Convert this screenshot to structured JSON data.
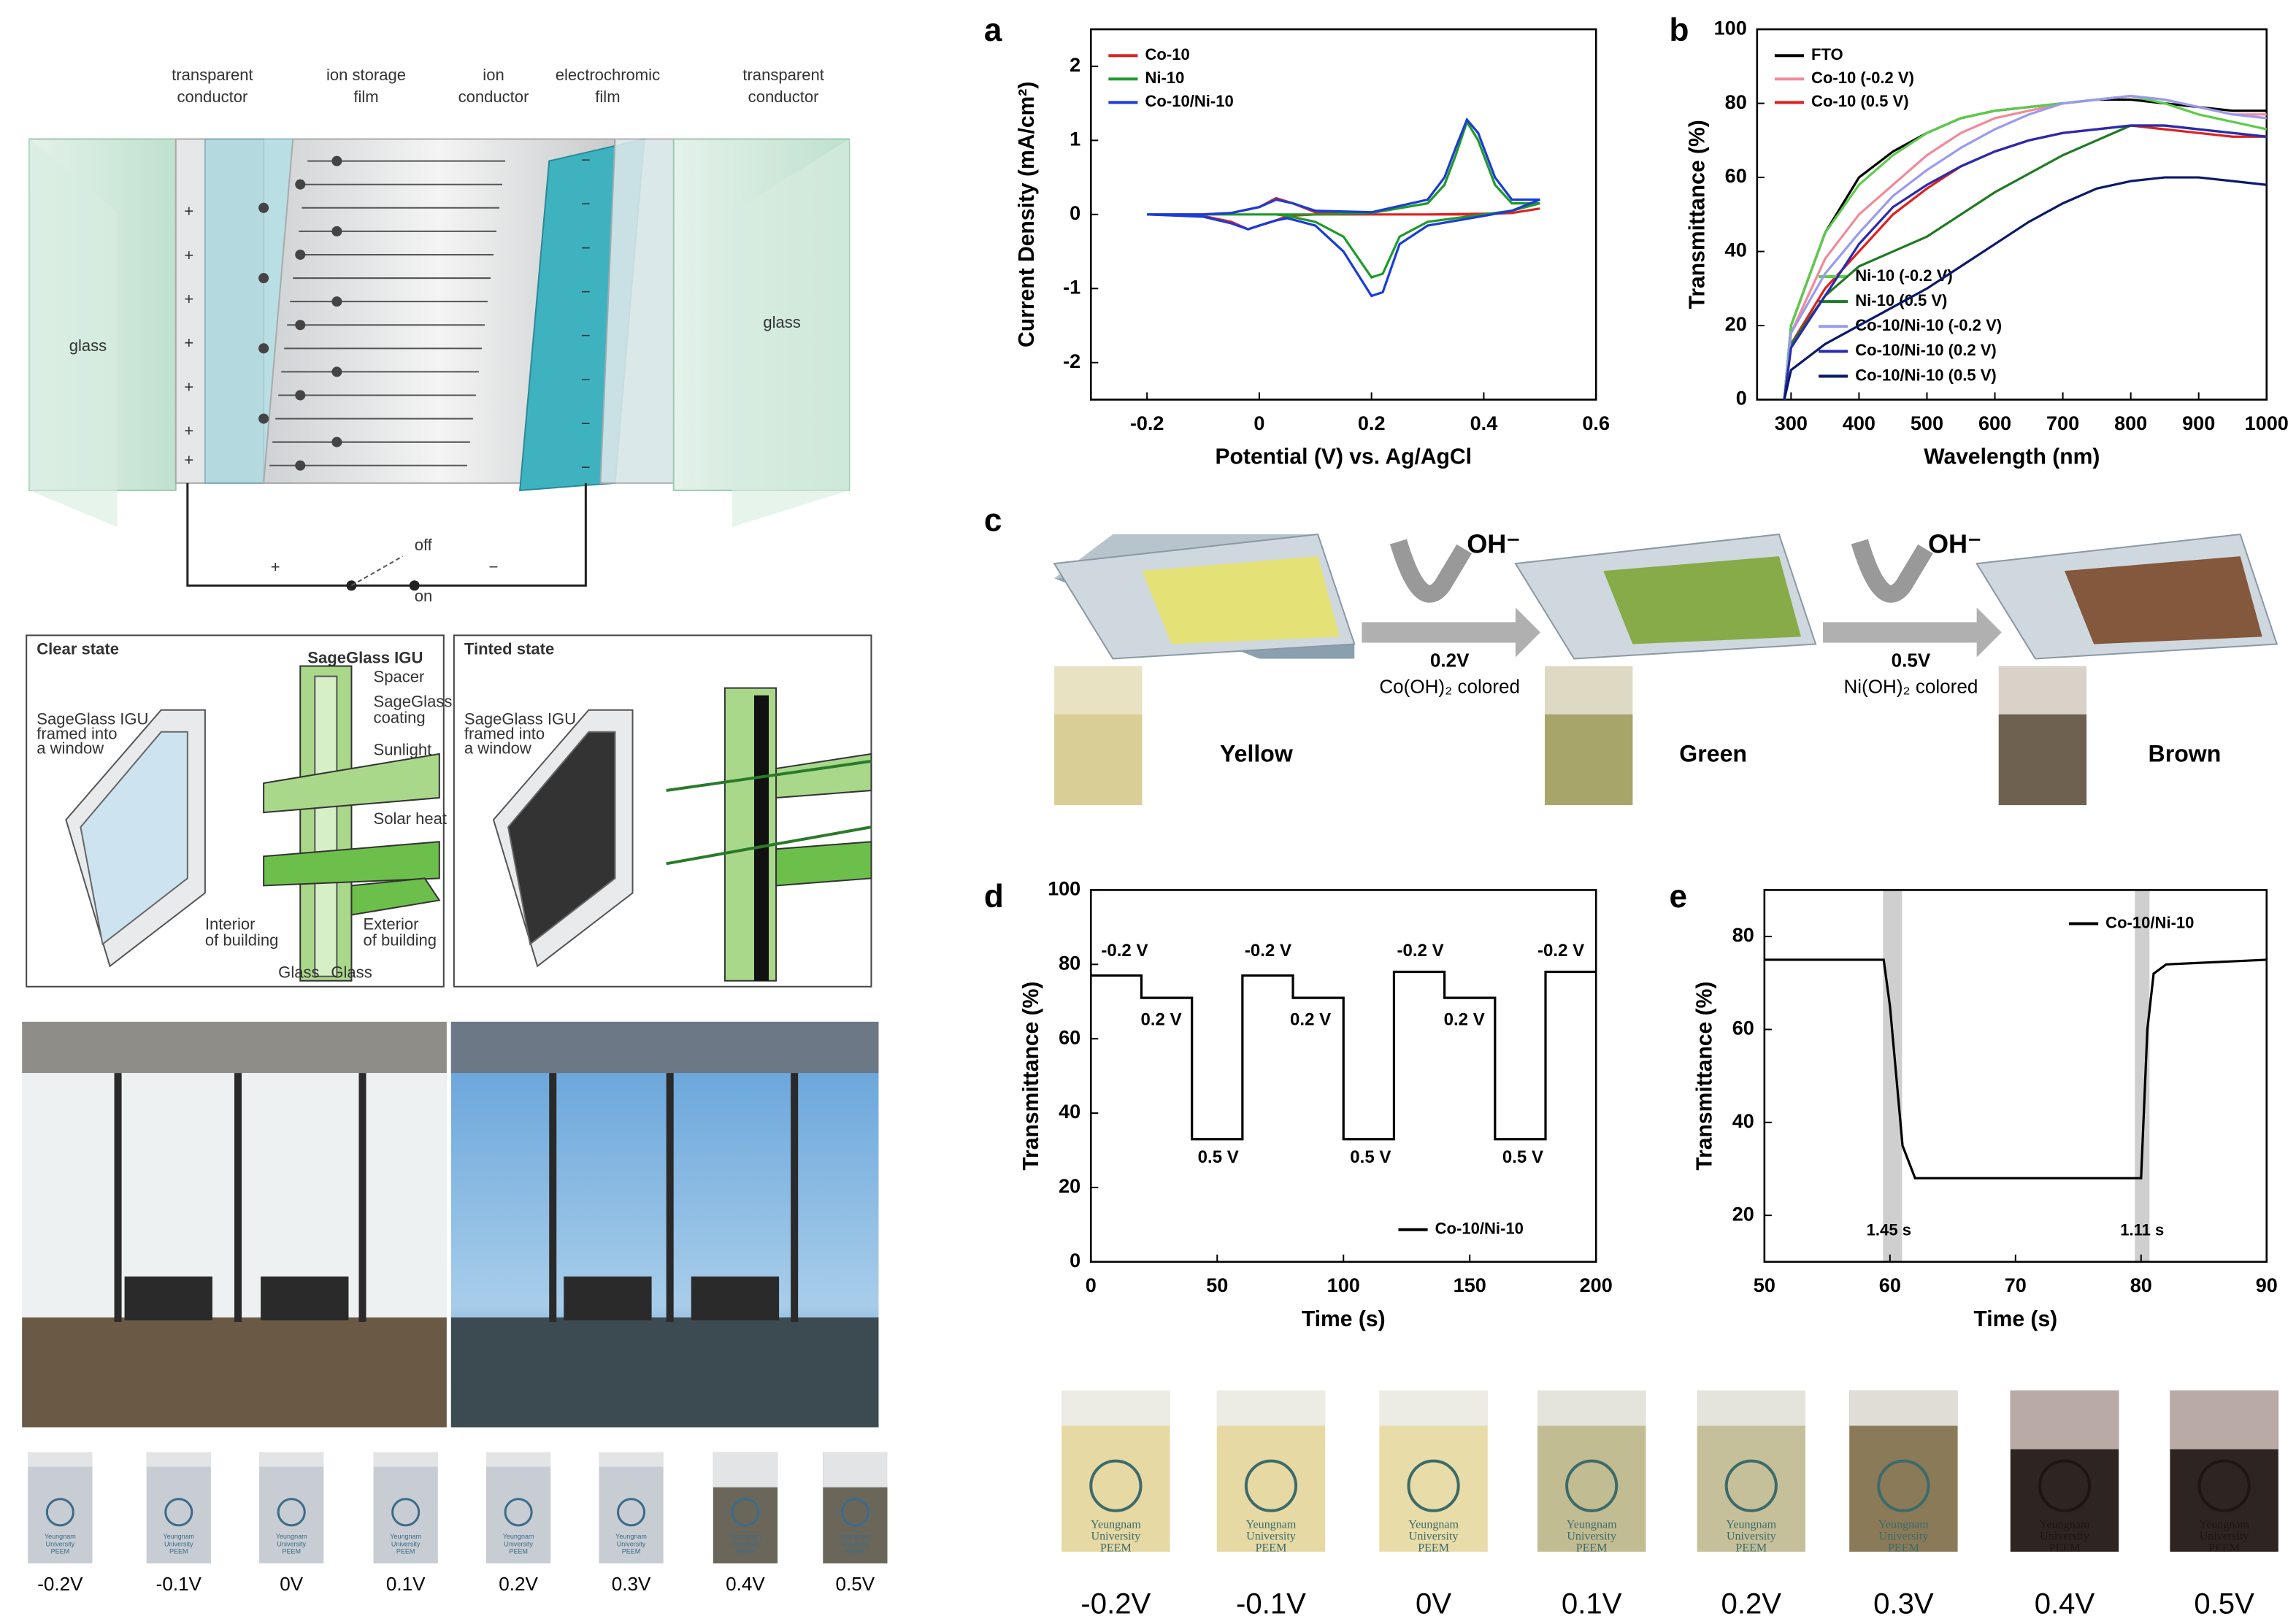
{
  "chart_data": [
    {
      "type": "line",
      "xlabel": "Potential (V) vs. Ag/AgCl",
      "ylabel": "Current Density (mA/cm²)",
      "xlim": [
        -0.3,
        0.6
      ],
      "xticks": [
        -0.2,
        0.0,
        0.2,
        0.4,
        0.6
      ],
      "ylim": [
        -2.5,
        2.5
      ],
      "yticks": [
        -2,
        -1,
        0,
        1,
        2
      ],
      "legend": "upper left",
      "x": [
        -0.2,
        -0.1,
        -0.05,
        0,
        0.03,
        0.06,
        0.1,
        0.2,
        0.3,
        0.33,
        0.35,
        0.37,
        0.39,
        0.42,
        0.45,
        0.5,
        0.45,
        0.4,
        0.3,
        0.25,
        0.22,
        0.2,
        0.15,
        0.1,
        0.05,
        0.03,
        0,
        -0.02,
        -0.05,
        -0.1,
        -0.2
      ],
      "series": [
        {
          "name": "Co-10",
          "color": "#e02020",
          "values": [
            0,
            0,
            0.02,
            0.1,
            0.22,
            0.15,
            0.03,
            0,
            0,
            0,
            0,
            0,
            0,
            0.01,
            0.02,
            0.08,
            0.02,
            0.01,
            0,
            0,
            0,
            0,
            0,
            0,
            -0.02,
            -0.08,
            -0.15,
            -0.2,
            -0.1,
            -0.02,
            0
          ]
        },
        {
          "name": "Ni-10",
          "color": "#1f9a2a",
          "values": [
            0,
            0,
            0,
            0,
            0,
            0,
            0,
            0.02,
            0.15,
            0.4,
            0.8,
            1.25,
            1.0,
            0.4,
            0.15,
            0.15,
            0.05,
            0,
            -0.1,
            -0.3,
            -0.8,
            -0.85,
            -0.3,
            -0.1,
            -0.02,
            0,
            0,
            0,
            0,
            0,
            0
          ]
        },
        {
          "name": "Co-10/Ni-10",
          "color": "#1a3cd8",
          "values": [
            0,
            0,
            0.02,
            0.1,
            0.2,
            0.15,
            0.05,
            0.03,
            0.2,
            0.5,
            0.9,
            1.28,
            1.1,
            0.5,
            0.2,
            0.2,
            0.05,
            -0.02,
            -0.15,
            -0.4,
            -1.05,
            -1.1,
            -0.5,
            -0.15,
            -0.05,
            -0.08,
            -0.15,
            -0.2,
            -0.12,
            -0.03,
            0
          ]
        }
      ]
    },
    {
      "type": "line",
      "xlabel": "Wavelength (nm)",
      "ylabel": "Transmittance (%)",
      "xlim": [
        250,
        1000
      ],
      "xticks": [
        300,
        400,
        500,
        600,
        700,
        800,
        900,
        1000
      ],
      "ylim": [
        0,
        100
      ],
      "yticks": [
        0,
        20,
        40,
        60,
        80,
        100
      ],
      "legend": "upper left",
      "x": [
        290,
        300,
        350,
        400,
        450,
        500,
        550,
        600,
        650,
        700,
        750,
        800,
        850,
        900,
        950,
        1000
      ],
      "series": [
        {
          "name": "FTO",
          "color": "#000000",
          "values": [
            0,
            20,
            45,
            60,
            67,
            72,
            76,
            78,
            79,
            80,
            81,
            81,
            80,
            79,
            78,
            78
          ]
        },
        {
          "name": "Co-10 (-0.2 V)",
          "color": "#f08a9a",
          "values": [
            0,
            18,
            38,
            50,
            58,
            66,
            72,
            76,
            78,
            80,
            81,
            82,
            81,
            79,
            77,
            77
          ]
        },
        {
          "name": "Co-10 (0.5 V)",
          "color": "#e02020",
          "values": [
            0,
            15,
            30,
            40,
            50,
            57,
            63,
            67,
            70,
            72,
            73,
            74,
            73,
            72,
            71,
            71
          ]
        },
        {
          "name": "Ni-10 (-0.2 V)",
          "color": "#5ccc4a",
          "values": [
            0,
            20,
            45,
            58,
            66,
            72,
            76,
            78,
            79,
            80,
            81,
            82,
            80,
            77,
            75,
            73
          ]
        },
        {
          "name": "Ni-10 (0.5 V)",
          "color": "#1f7a22",
          "values": [
            0,
            15,
            28,
            36,
            40,
            44,
            50,
            56,
            61,
            66,
            70,
            74,
            74,
            73,
            72,
            71
          ]
        },
        {
          "name": "Co-10/Ni-10 (-0.2 V)",
          "color": "#9a9af0",
          "values": [
            0,
            18,
            34,
            45,
            55,
            62,
            68,
            73,
            77,
            80,
            81,
            82,
            81,
            79,
            77,
            76
          ]
        },
        {
          "name": "Co-10/Ni-10 (0.2 V)",
          "color": "#2a2ab0",
          "values": [
            0,
            14,
            28,
            42,
            52,
            58,
            63,
            67,
            70,
            72,
            73,
            74,
            74,
            73,
            72,
            71
          ]
        },
        {
          "name": "Co-10/Ni-10 (0.5 V)",
          "color": "#0a1a6a",
          "values": [
            0,
            8,
            15,
            20,
            25,
            30,
            36,
            42,
            48,
            53,
            57,
            59,
            60,
            60,
            59,
            58
          ]
        }
      ]
    },
    {
      "type": "line",
      "xlabel": "Time (s)",
      "ylabel": "Transmittance (%)",
      "xlim": [
        0,
        200
      ],
      "xticks": [
        0,
        50,
        100,
        150,
        200
      ],
      "ylim": [
        0,
        100
      ],
      "yticks": [
        0,
        20,
        40,
        60,
        80,
        100
      ],
      "legend": "lower right",
      "x": [
        0,
        20,
        20,
        40,
        40,
        60,
        60,
        80,
        80,
        100,
        100,
        120,
        120,
        140,
        140,
        160,
        160,
        180,
        180,
        200
      ],
      "series": [
        {
          "name": "Co-10/Ni-10",
          "color": "#000000",
          "values": [
            77,
            77,
            71,
            71,
            33,
            33,
            77,
            77,
            71,
            71,
            33,
            33,
            78,
            78,
            71,
            71,
            33,
            33,
            78,
            78
          ]
        }
      ],
      "annotations": [
        "-0.2 V",
        "0.2 V",
        "0.5 V",
        "-0.2 V",
        "0.2 V",
        "0.5 V",
        "-0.2 V",
        "0.2 V",
        "0.5 V",
        "-0.2 V"
      ]
    },
    {
      "type": "line",
      "xlabel": "Time (s)",
      "ylabel": "Transmittance (%)",
      "xlim": [
        50,
        90
      ],
      "xticks": [
        50,
        60,
        70,
        80,
        90
      ],
      "ylim": [
        10,
        90
      ],
      "yticks": [
        20,
        40,
        60,
        80
      ],
      "legend": "upper right",
      "x": [
        50,
        59.5,
        60,
        61,
        62,
        70,
        79.5,
        80,
        80.5,
        81,
        82,
        90
      ],
      "series": [
        {
          "name": "Co-10/Ni-10",
          "color": "#000000",
          "values": [
            75,
            75,
            65,
            35,
            28,
            28,
            28,
            28,
            60,
            72,
            74,
            75
          ]
        }
      ],
      "annotations": [
        "1.45 s",
        "1.11 s"
      ]
    }
  ],
  "figure": {
    "panel_labels": [
      "a",
      "b",
      "c",
      "d",
      "e"
    ],
    "device_diagram": {
      "labels": [
        [
          "transparent",
          "conductor"
        ],
        [
          "ion storage",
          "film"
        ],
        [
          "ion",
          "conductor"
        ],
        [
          "electrochromic",
          "film"
        ],
        [
          "transparent",
          "conductor"
        ]
      ],
      "glass": [
        "glass",
        "glass"
      ],
      "plus": "+",
      "minus": "−",
      "off": "off",
      "on": "on"
    },
    "sageglass": {
      "texts": [
        "Clear state",
        "SageGlass IGU",
        "Spacer",
        "SageGlass",
        "coating",
        "Sunlight",
        "Solar heat",
        "SageGlass IGU",
        "framed into",
        "a window",
        "Interior",
        "of building",
        "Exterior",
        "of building",
        "Glass",
        "Glass",
        "Tinted state",
        "SageGlass IGU",
        "framed into",
        "a window"
      ]
    },
    "panel_c": {
      "oh": "OH⁻",
      "step1": [
        "0.2V",
        "Co(OH)₂ colored"
      ],
      "step2": [
        "0.5V",
        "Ni(OH)₂ colored"
      ],
      "colors": [
        "Yellow",
        "Green",
        "Brown"
      ]
    },
    "device_text": [
      "Yeungnam",
      "University",
      "PEEM"
    ],
    "voltages": [
      "-0.2V",
      "-0.1V",
      "0V",
      "0.1V",
      "0.2V",
      "0.3V",
      "0.4V",
      "0.5V"
    ]
  }
}
